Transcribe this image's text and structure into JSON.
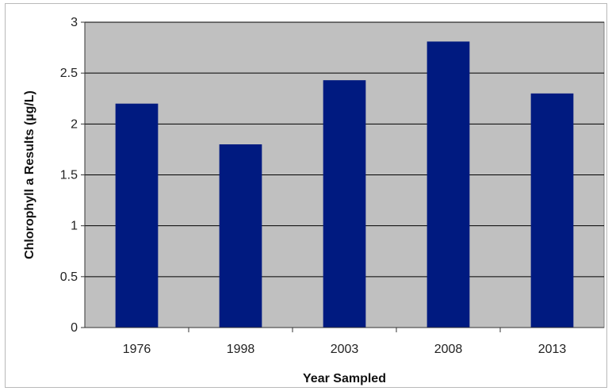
{
  "chart_data": {
    "type": "bar",
    "title": "",
    "xlabel": "Year Sampled",
    "ylabel": "Chlorophyll a Results (µg/L)",
    "categories": [
      "1976",
      "1998",
      "2003",
      "2008",
      "2013"
    ],
    "values": [
      2.2,
      1.8,
      2.43,
      2.81,
      2.3
    ],
    "ylim": [
      0,
      3
    ],
    "yticks": [
      "0",
      "0.5",
      "1",
      "1.5",
      "2",
      "2.5",
      "3"
    ],
    "grid": true,
    "legend": "none",
    "colors": {
      "bar": "#001a80",
      "plot_background": "#c0c0c0",
      "gridline": "#000000"
    }
  }
}
